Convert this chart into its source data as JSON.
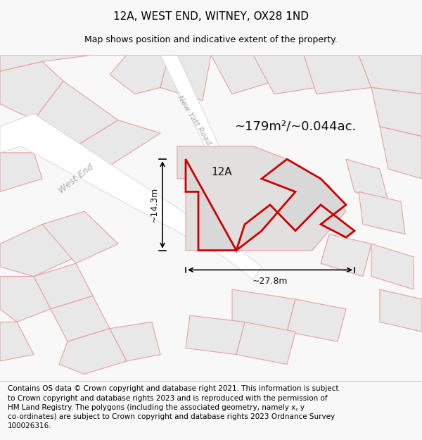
{
  "title": "12A, WEST END, WITNEY, OX28 1ND",
  "subtitle": "Map shows position and indicative extent of the property.",
  "area_label": "~179m²/~0.044ac.",
  "label_12a": "12A",
  "dim_height": "~14.3m",
  "dim_width": "~27.8m",
  "street1": "West End",
  "street2": "New Yatt Road",
  "footer": "Contains OS data © Crown copyright and database right 2021. This information is subject\nto Crown copyright and database rights 2023 and is reproduced with the permission of\nHM Land Registry. The polygons (including the associated geometry, namely x, y\nco-ordinates) are subject to Crown copyright and database rights 2023 Ordnance Survey\n100026316.",
  "bg_color": "#f8f8f8",
  "map_bg": "#f5f5f3",
  "parcel_fill": "#e8e8e8",
  "parcel_edge": "#e8a0a0",
  "property_fill": "#d8d8d8",
  "property_edge": "#cc0000",
  "road_fill": "#ffffff",
  "road_edge": "#cccccc",
  "title_fontsize": 11,
  "subtitle_fontsize": 9,
  "footer_fontsize": 7.5,
  "street_color": "#aaaaaa",
  "dim_color": "#111111",
  "area_fontsize": 13
}
